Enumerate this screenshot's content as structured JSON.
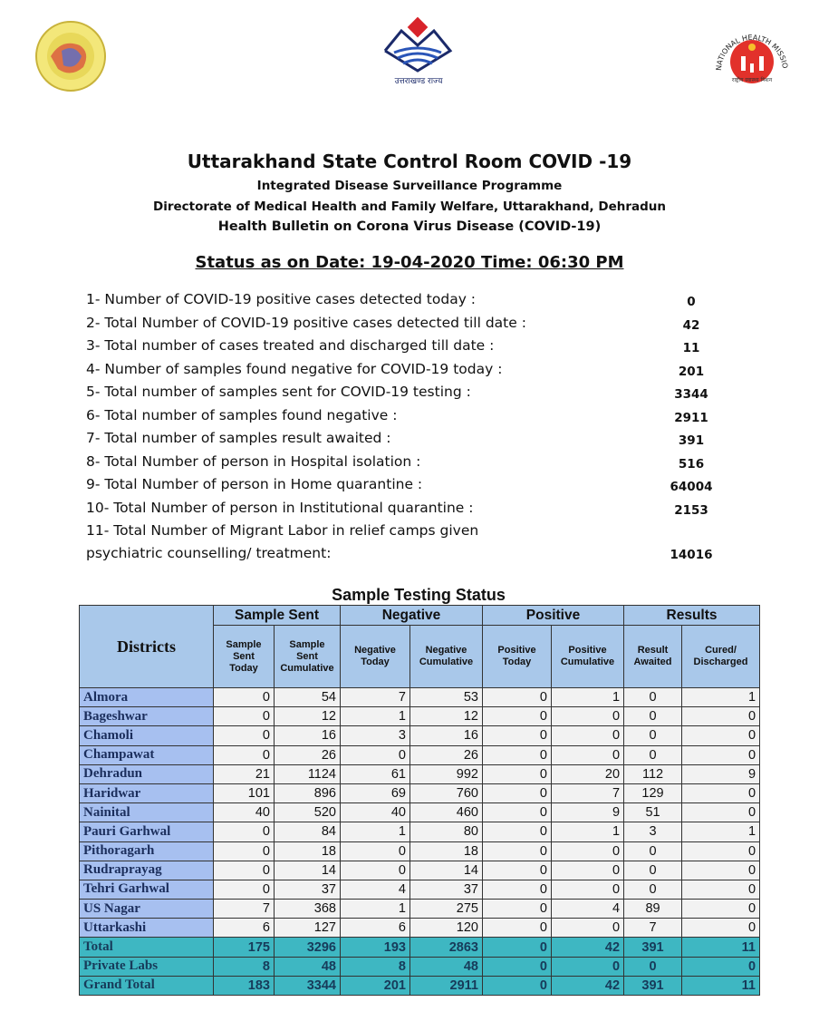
{
  "logos": {
    "center_caption": "उत्तराखण्ड राज्य",
    "right_text": "NATIONAL HEALTH MISSION",
    "right_caption": "राष्ट्रीय स्वास्थ्य मिशन"
  },
  "header": {
    "title": "Uttarakhand State Control Room COVID -19",
    "line2": "Integrated Disease Surveillance Programme",
    "line3": "Directorate of Medical Health and Family Welfare, Uttarakhand, Dehradun",
    "line4": "Health Bulletin on Corona Virus Disease (COVID-19)",
    "status": "Status as on  Date: 19-04-2020 Time: 06:30 PM"
  },
  "items": [
    {
      "label": "1- Number of COVID-19 positive cases detected today :",
      "value": "0"
    },
    {
      "label": "2- Total Number of COVID-19 positive cases detected till date :",
      "value": "42"
    },
    {
      "label": "3- Total number of cases treated and discharged till date :",
      "value": "11"
    },
    {
      "label": "4- Number of samples found negative for COVID-19 today :",
      "value": "201"
    },
    {
      "label": "5- Total number of samples sent for COVID-19 testing :",
      "value": "3344"
    },
    {
      "label": "6- Total number of samples found negative :",
      "value": "2911"
    },
    {
      "label": "7- Total number of samples result awaited :",
      "value": "391"
    },
    {
      "label": "8- Total Number of person in Hospital isolation :",
      "value": "516"
    },
    {
      "label": "9- Total Number of person in Home quarantine :",
      "value": "64004"
    },
    {
      "label": "10- Total Number of person in Institutional quarantine :",
      "value": "2153"
    },
    {
      "label": "11- Total Number of Migrant Labor in relief camps given psychiatric counselling/ treatment:",
      "value": "14016"
    }
  ],
  "table": {
    "title": "Sample Testing Status",
    "districts_header": "Districts",
    "groups": [
      "Sample Sent",
      "Negative",
      "Positive",
      "Results"
    ],
    "columns": [
      "Sample Sent Today",
      "Sample Sent Cumulative",
      "Negative Today",
      "Negative Cumulative",
      "Positive Today",
      "Positive Cumulative",
      "Result Awaited",
      "Cured/ Discharged"
    ],
    "rows": [
      {
        "name": "Almora",
        "values": [
          "0",
          "54",
          "7",
          "53",
          "0",
          "1",
          "0",
          "1"
        ]
      },
      {
        "name": "Bageshwar",
        "values": [
          "0",
          "12",
          "1",
          "12",
          "0",
          "0",
          "0",
          "0"
        ]
      },
      {
        "name": "Chamoli",
        "values": [
          "0",
          "16",
          "3",
          "16",
          "0",
          "0",
          "0",
          "0"
        ]
      },
      {
        "name": "Champawat",
        "values": [
          "0",
          "26",
          "0",
          "26",
          "0",
          "0",
          "0",
          "0"
        ]
      },
      {
        "name": "Dehradun",
        "values": [
          "21",
          "1124",
          "61",
          "992",
          "0",
          "20",
          "112",
          "9"
        ]
      },
      {
        "name": "Haridwar",
        "values": [
          "101",
          "896",
          "69",
          "760",
          "0",
          "7",
          "129",
          "0"
        ]
      },
      {
        "name": "Nainital",
        "values": [
          "40",
          "520",
          "40",
          "460",
          "0",
          "9",
          "51",
          "0"
        ]
      },
      {
        "name": "Pauri Garhwal",
        "values": [
          "0",
          "84",
          "1",
          "80",
          "0",
          "1",
          "3",
          "1"
        ]
      },
      {
        "name": "Pithoragarh",
        "values": [
          "0",
          "18",
          "0",
          "18",
          "0",
          "0",
          "0",
          "0"
        ]
      },
      {
        "name": "Rudraprayag",
        "values": [
          "0",
          "14",
          "0",
          "14",
          "0",
          "0",
          "0",
          "0"
        ]
      },
      {
        "name": "Tehri Garhwal",
        "values": [
          "0",
          "37",
          "4",
          "37",
          "0",
          "0",
          "0",
          "0"
        ]
      },
      {
        "name": "US Nagar",
        "values": [
          "7",
          "368",
          "1",
          "275",
          "0",
          "4",
          "89",
          "0"
        ]
      },
      {
        "name": "Uttarkashi",
        "values": [
          "6",
          "127",
          "6",
          "120",
          "0",
          "0",
          "7",
          "0"
        ]
      }
    ],
    "totals": [
      {
        "name": "Total",
        "values": [
          "175",
          "3296",
          "193",
          "2863",
          "0",
          "42",
          "391",
          "11"
        ]
      },
      {
        "name": "Private Labs",
        "values": [
          "8",
          "48",
          "8",
          "48",
          "0",
          "0",
          "0",
          "0"
        ]
      },
      {
        "name": "Grand Total",
        "values": [
          "183",
          "3344",
          "201",
          "2911",
          "0",
          "42",
          "391",
          "11"
        ]
      }
    ]
  }
}
